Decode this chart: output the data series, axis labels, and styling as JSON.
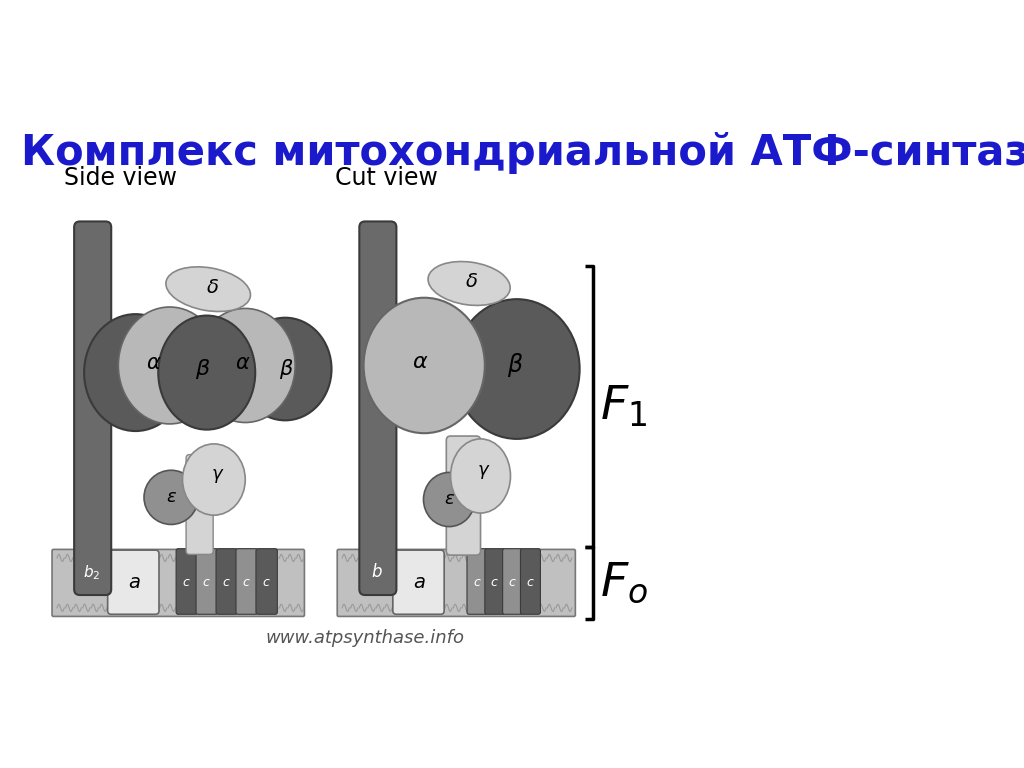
{
  "title": "Комплекс митохондриальной АТФ-синтазы:",
  "title_color": "#1a1acc",
  "title_fontsize": 30,
  "bg_color": "#ffffff",
  "label_side": "Side view",
  "label_cut": "Cut view",
  "watermark": "www.atpsynthase.info",
  "colors": {
    "dk": "#606060",
    "md": "#909090",
    "lg": "#b8b8b8",
    "vlg": "#d0d0d0",
    "wg": "#e8e8e8",
    "b2_stalk": "#707070",
    "c_ring": "#888888",
    "membrane_bg": "#c0c0c0"
  }
}
